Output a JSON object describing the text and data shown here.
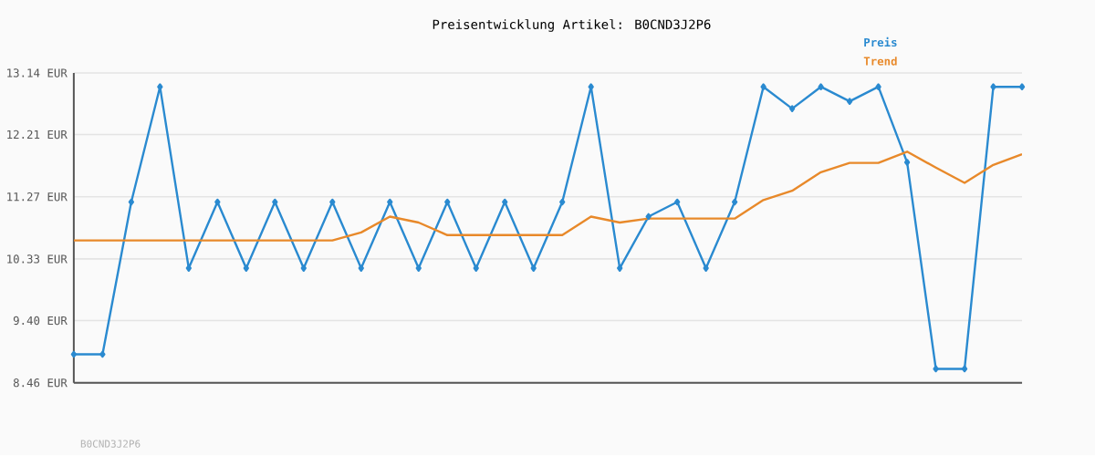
{
  "chart_data": {
    "type": "line",
    "title": "Preisentwicklung Artikel: B0CND3J2P6",
    "categories": [
      null,
      null,
      null,
      null,
      null,
      null,
      null,
      null,
      null,
      null,
      null,
      null,
      null,
      null,
      null,
      null,
      null,
      null,
      null,
      null,
      null,
      null,
      null,
      null,
      null,
      null,
      null,
      null,
      null,
      null,
      null,
      null,
      null,
      null
    ],
    "series": [
      {
        "name": "Preis",
        "color": "#2a8ad0",
        "marker": "diamond",
        "values": [
          8.89,
          8.89,
          11.19,
          12.93,
          10.19,
          11.19,
          10.19,
          11.19,
          10.19,
          11.19,
          10.19,
          11.19,
          10.19,
          11.19,
          10.19,
          11.19,
          10.19,
          11.19,
          12.93,
          10.19,
          10.97,
          11.19,
          10.19,
          11.19,
          12.93,
          12.6,
          12.93,
          12.71,
          12.93,
          11.79,
          8.67,
          8.67,
          12.93,
          12.93
        ]
      },
      {
        "name": "Trend",
        "color": "#e8892a",
        "marker": "none",
        "values": [
          10.61,
          10.61,
          10.61,
          10.61,
          10.61,
          10.61,
          10.61,
          10.61,
          10.61,
          10.61,
          10.73,
          10.97,
          10.88,
          10.69,
          10.69,
          10.69,
          10.69,
          10.69,
          10.97,
          10.88,
          10.94,
          10.94,
          10.94,
          10.94,
          11.22,
          11.36,
          11.64,
          11.78,
          11.78,
          11.95,
          11.71,
          11.48,
          11.75,
          11.91
        ]
      }
    ],
    "ylim": [
      8.46,
      13.14
    ],
    "yticks": [
      {
        "value": 8.46,
        "label": "8.46 EUR"
      },
      {
        "value": 9.4,
        "label": "9.40 EUR"
      },
      {
        "value": 10.33,
        "label": "10.33 EUR"
      },
      {
        "value": 11.27,
        "label": "11.27 EUR"
      },
      {
        "value": 12.21,
        "label": "12.21 EUR"
      },
      {
        "value": 13.14,
        "label": "13.14 EUR"
      }
    ],
    "grid": "y",
    "legend": "top right",
    "annotations": [
      "B0CND3J2P6"
    ]
  }
}
